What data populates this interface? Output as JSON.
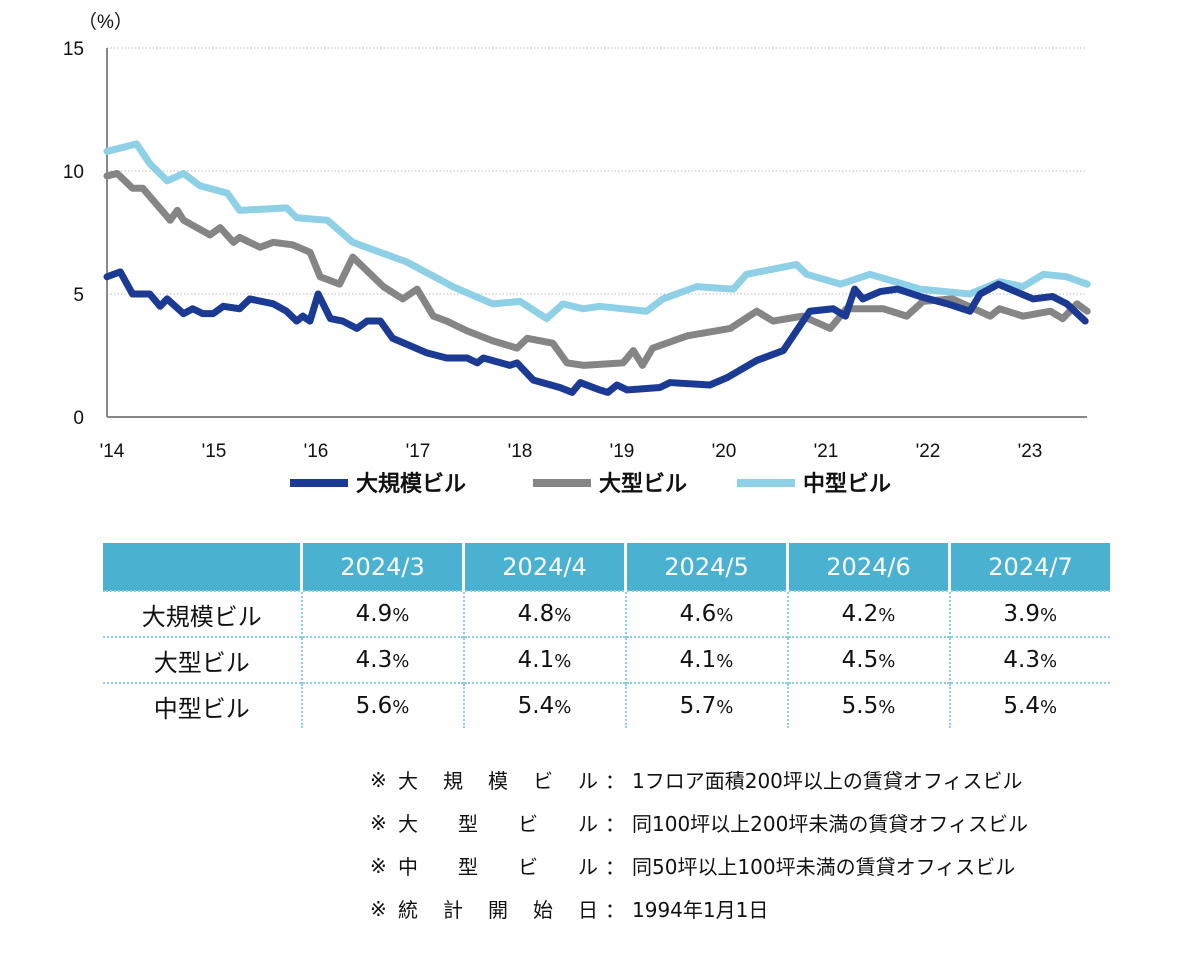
{
  "chart_data": {
    "type": "line",
    "unit_label": "（%）",
    "ylim": [
      0,
      15
    ],
    "yticks": [
      0,
      5,
      10,
      15
    ],
    "xlim": [
      2014,
      2023.61
    ],
    "xtick_labels": [
      "'14",
      "'15",
      "'16",
      "'17",
      "'18",
      "'19",
      "'20",
      "'21",
      "'22",
      "'23"
    ],
    "xtick_values": [
      2014,
      2015,
      2016,
      2017,
      2018,
      2019,
      2020,
      2021,
      2022,
      2023
    ],
    "grid": "horizontal dotted",
    "legend_position": "bottom",
    "series": [
      {
        "name": "大規模ビル",
        "color": "#1b3a93",
        "points": [
          [
            2014.0,
            5.7
          ],
          [
            2014.13,
            5.9
          ],
          [
            2014.25,
            5.0
          ],
          [
            2014.42,
            5.0
          ],
          [
            2014.52,
            4.5
          ],
          [
            2014.59,
            4.8
          ],
          [
            2014.75,
            4.2
          ],
          [
            2014.84,
            4.4
          ],
          [
            2014.94,
            4.2
          ],
          [
            2015.04,
            4.2
          ],
          [
            2015.14,
            4.5
          ],
          [
            2015.3,
            4.4
          ],
          [
            2015.4,
            4.8
          ],
          [
            2015.63,
            4.6
          ],
          [
            2015.76,
            4.3
          ],
          [
            2015.86,
            3.9
          ],
          [
            2015.92,
            4.1
          ],
          [
            2015.99,
            3.9
          ],
          [
            2016.07,
            5.0
          ],
          [
            2016.19,
            4.0
          ],
          [
            2016.31,
            3.9
          ],
          [
            2016.45,
            3.6
          ],
          [
            2016.55,
            3.9
          ],
          [
            2016.68,
            3.9
          ],
          [
            2016.8,
            3.2
          ],
          [
            2017.14,
            2.6
          ],
          [
            2017.33,
            2.4
          ],
          [
            2017.53,
            2.4
          ],
          [
            2017.63,
            2.2
          ],
          [
            2017.69,
            2.4
          ],
          [
            2017.95,
            2.1
          ],
          [
            2018.02,
            2.2
          ],
          [
            2018.18,
            1.5
          ],
          [
            2018.44,
            1.2
          ],
          [
            2018.56,
            1.0
          ],
          [
            2018.64,
            1.4
          ],
          [
            2018.83,
            1.1
          ],
          [
            2018.91,
            1.0
          ],
          [
            2019.0,
            1.3
          ],
          [
            2019.1,
            1.1
          ],
          [
            2019.42,
            1.2
          ],
          [
            2019.52,
            1.4
          ],
          [
            2019.91,
            1.3
          ],
          [
            2020.08,
            1.6
          ],
          [
            2020.37,
            2.3
          ],
          [
            2020.63,
            2.7
          ],
          [
            2020.89,
            4.3
          ],
          [
            2021.12,
            4.4
          ],
          [
            2021.24,
            4.1
          ],
          [
            2021.33,
            5.2
          ],
          [
            2021.41,
            4.8
          ],
          [
            2021.58,
            5.1
          ],
          [
            2021.75,
            5.2
          ],
          [
            2021.97,
            4.9
          ],
          [
            2022.24,
            4.6
          ],
          [
            2022.46,
            4.3
          ],
          [
            2022.56,
            5.0
          ],
          [
            2022.74,
            5.4
          ],
          [
            2022.85,
            5.2
          ],
          [
            2023.08,
            4.8
          ],
          [
            2023.27,
            4.9
          ],
          [
            2023.41,
            4.6
          ],
          [
            2023.59,
            3.9
          ]
        ]
      },
      {
        "name": "大型ビル",
        "color": "#858585",
        "points": [
          [
            2014.0,
            9.8
          ],
          [
            2014.1,
            9.9
          ],
          [
            2014.25,
            9.3
          ],
          [
            2014.35,
            9.3
          ],
          [
            2014.62,
            8.0
          ],
          [
            2014.69,
            8.4
          ],
          [
            2014.75,
            8.0
          ],
          [
            2015.01,
            7.4
          ],
          [
            2015.11,
            7.7
          ],
          [
            2015.24,
            7.1
          ],
          [
            2015.3,
            7.3
          ],
          [
            2015.5,
            6.9
          ],
          [
            2015.63,
            7.1
          ],
          [
            2015.82,
            7.0
          ],
          [
            2015.99,
            6.7
          ],
          [
            2016.09,
            5.7
          ],
          [
            2016.28,
            5.4
          ],
          [
            2016.41,
            6.5
          ],
          [
            2016.71,
            5.3
          ],
          [
            2016.9,
            4.8
          ],
          [
            2017.04,
            5.2
          ],
          [
            2017.2,
            4.1
          ],
          [
            2017.33,
            3.9
          ],
          [
            2017.53,
            3.5
          ],
          [
            2017.78,
            3.1
          ],
          [
            2018.02,
            2.8
          ],
          [
            2018.12,
            3.2
          ],
          [
            2018.37,
            3.0
          ],
          [
            2018.51,
            2.2
          ],
          [
            2018.67,
            2.1
          ],
          [
            2019.06,
            2.2
          ],
          [
            2019.16,
            2.7
          ],
          [
            2019.25,
            2.1
          ],
          [
            2019.35,
            2.8
          ],
          [
            2019.69,
            3.3
          ],
          [
            2020.11,
            3.6
          ],
          [
            2020.37,
            4.3
          ],
          [
            2020.53,
            3.9
          ],
          [
            2020.82,
            4.1
          ],
          [
            2021.09,
            3.6
          ],
          [
            2021.25,
            4.4
          ],
          [
            2021.61,
            4.4
          ],
          [
            2021.84,
            4.1
          ],
          [
            2022.0,
            4.7
          ],
          [
            2022.29,
            4.8
          ],
          [
            2022.66,
            4.1
          ],
          [
            2022.75,
            4.4
          ],
          [
            2022.98,
            4.1
          ],
          [
            2023.25,
            4.3
          ],
          [
            2023.37,
            4.0
          ],
          [
            2023.51,
            4.6
          ],
          [
            2023.61,
            4.3
          ]
        ]
      },
      {
        "name": "中型ビル",
        "color": "#8ed1e6",
        "points": [
          [
            2014.0,
            10.8
          ],
          [
            2014.29,
            11.1
          ],
          [
            2014.42,
            10.3
          ],
          [
            2014.59,
            9.6
          ],
          [
            2014.75,
            9.9
          ],
          [
            2014.91,
            9.4
          ],
          [
            2015.18,
            9.1
          ],
          [
            2015.3,
            8.4
          ],
          [
            2015.76,
            8.5
          ],
          [
            2015.86,
            8.1
          ],
          [
            2016.16,
            8.0
          ],
          [
            2016.41,
            7.1
          ],
          [
            2016.94,
            6.3
          ],
          [
            2017.39,
            5.3
          ],
          [
            2017.78,
            4.6
          ],
          [
            2018.05,
            4.7
          ],
          [
            2018.31,
            4.0
          ],
          [
            2018.47,
            4.6
          ],
          [
            2018.67,
            4.4
          ],
          [
            2018.83,
            4.5
          ],
          [
            2019.29,
            4.3
          ],
          [
            2019.45,
            4.8
          ],
          [
            2019.78,
            5.3
          ],
          [
            2020.14,
            5.2
          ],
          [
            2020.27,
            5.8
          ],
          [
            2020.76,
            6.2
          ],
          [
            2020.86,
            5.8
          ],
          [
            2021.19,
            5.4
          ],
          [
            2021.48,
            5.8
          ],
          [
            2021.97,
            5.2
          ],
          [
            2022.46,
            5.0
          ],
          [
            2022.75,
            5.5
          ],
          [
            2022.98,
            5.3
          ],
          [
            2023.18,
            5.8
          ],
          [
            2023.41,
            5.7
          ],
          [
            2023.61,
            5.4
          ]
        ]
      }
    ]
  },
  "table": {
    "headers": [
      "2024/3",
      "2024/4",
      "2024/5",
      "2024/6",
      "2024/7"
    ],
    "percent_sign": "%",
    "rows": [
      {
        "label": "大規模ビル",
        "values": [
          "4.9",
          "4.8",
          "4.6",
          "4.2",
          "3.9"
        ]
      },
      {
        "label": "大型ビル",
        "values": [
          "4.3",
          "4.1",
          "4.1",
          "4.5",
          "4.3"
        ]
      },
      {
        "label": "中型ビル",
        "values": [
          "5.6",
          "5.4",
          "5.7",
          "5.5",
          "5.4"
        ]
      }
    ]
  },
  "notes": {
    "mark": "※",
    "colon": "：",
    "items": [
      {
        "label": "大規模ビル",
        "text": "1フロア面積200坪以上の賃貸オフィスビル"
      },
      {
        "label": "大型ビル",
        "text": "同100坪以上200坪未満の賃貸オフィスビル"
      },
      {
        "label": "中型ビル",
        "text": "同50坪以上100坪未満の賃貸オフィスビル"
      },
      {
        "label": "統計開始日",
        "text": "1994年1月1日"
      }
    ]
  }
}
